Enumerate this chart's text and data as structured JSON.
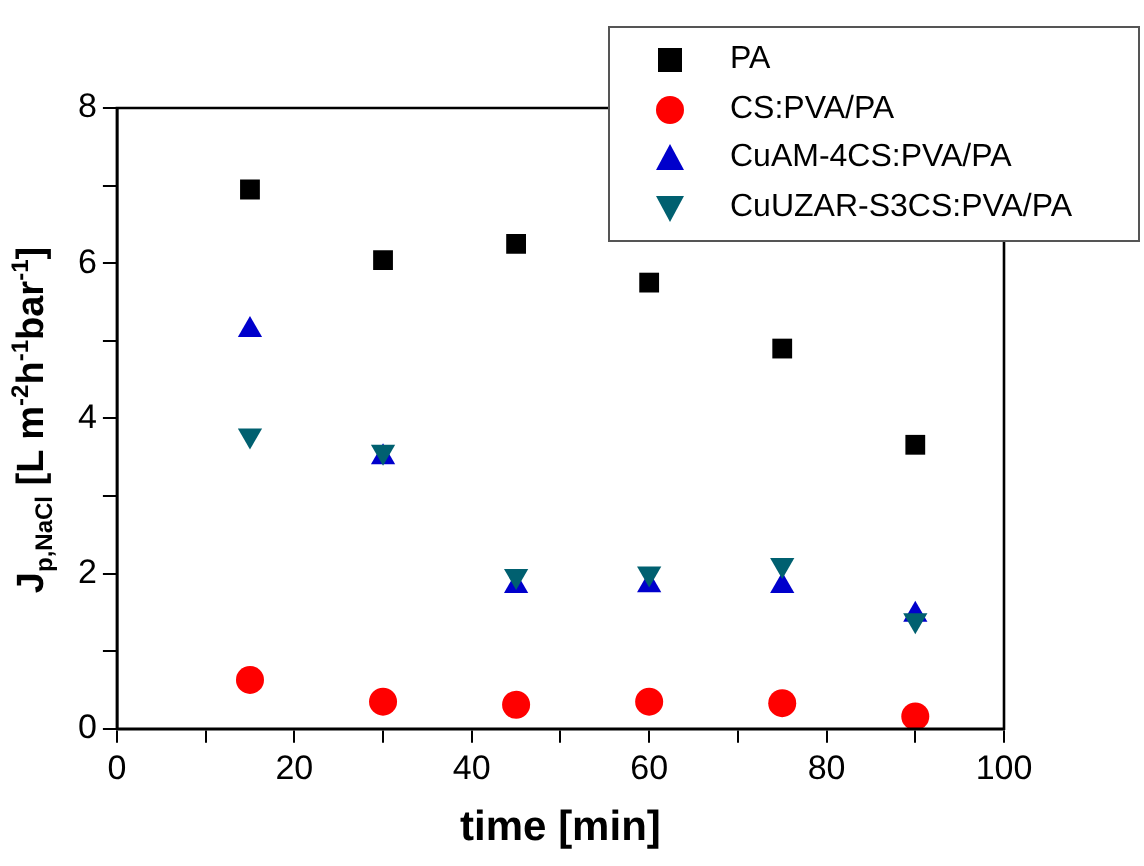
{
  "chart_data": {
    "type": "scatter",
    "xlabel": "time [min]",
    "ylabel": "J$_{p,NaCl}$ [L m$^{-2}$h$^{-1}$bar$^{-1}$]",
    "x": [
      15,
      30,
      45,
      60,
      75,
      90
    ],
    "xlim": [
      0,
      100
    ],
    "xticks": [
      0,
      {
        "value": 10,
        "label": null
      },
      20,
      {
        "value": 30,
        "label": null
      },
      40,
      {
        "value": 50,
        "label": null
      },
      60,
      {
        "value": 70,
        "label": null
      },
      80,
      {
        "value": 90,
        "label": null
      },
      100
    ],
    "ylim": [
      0,
      8
    ],
    "yticks": [
      0,
      {
        "value": 1,
        "label": null
      },
      2,
      {
        "value": 3,
        "label": null
      },
      4,
      {
        "value": 5,
        "label": null
      },
      6,
      {
        "value": 7,
        "label": null
      },
      8
    ],
    "grid": false,
    "legend": "top right",
    "series": [
      {
        "name": "PA",
        "color": "#000000",
        "marker": "square",
        "values": [
          6.95,
          6.04,
          6.25,
          5.75,
          4.9,
          3.66
        ]
      },
      {
        "name": "CS:PVA/PA",
        "color": "#ff0000",
        "marker": "circle",
        "values": [
          0.63,
          0.35,
          0.31,
          0.35,
          0.33,
          0.16
        ]
      },
      {
        "name": "CuAM-4CS:PVA/PA",
        "color": "#0000cc",
        "marker": "triangle",
        "values": [
          5.14,
          3.5,
          1.84,
          1.85,
          1.84,
          1.47
        ]
      },
      {
        "name": "CuUZAR-S3CS:PVA/PA",
        "color": "#006070",
        "marker": "triangle-down",
        "values": [
          3.78,
          3.57,
          1.97,
          2.0,
          2.11,
          1.4
        ]
      }
    ]
  }
}
